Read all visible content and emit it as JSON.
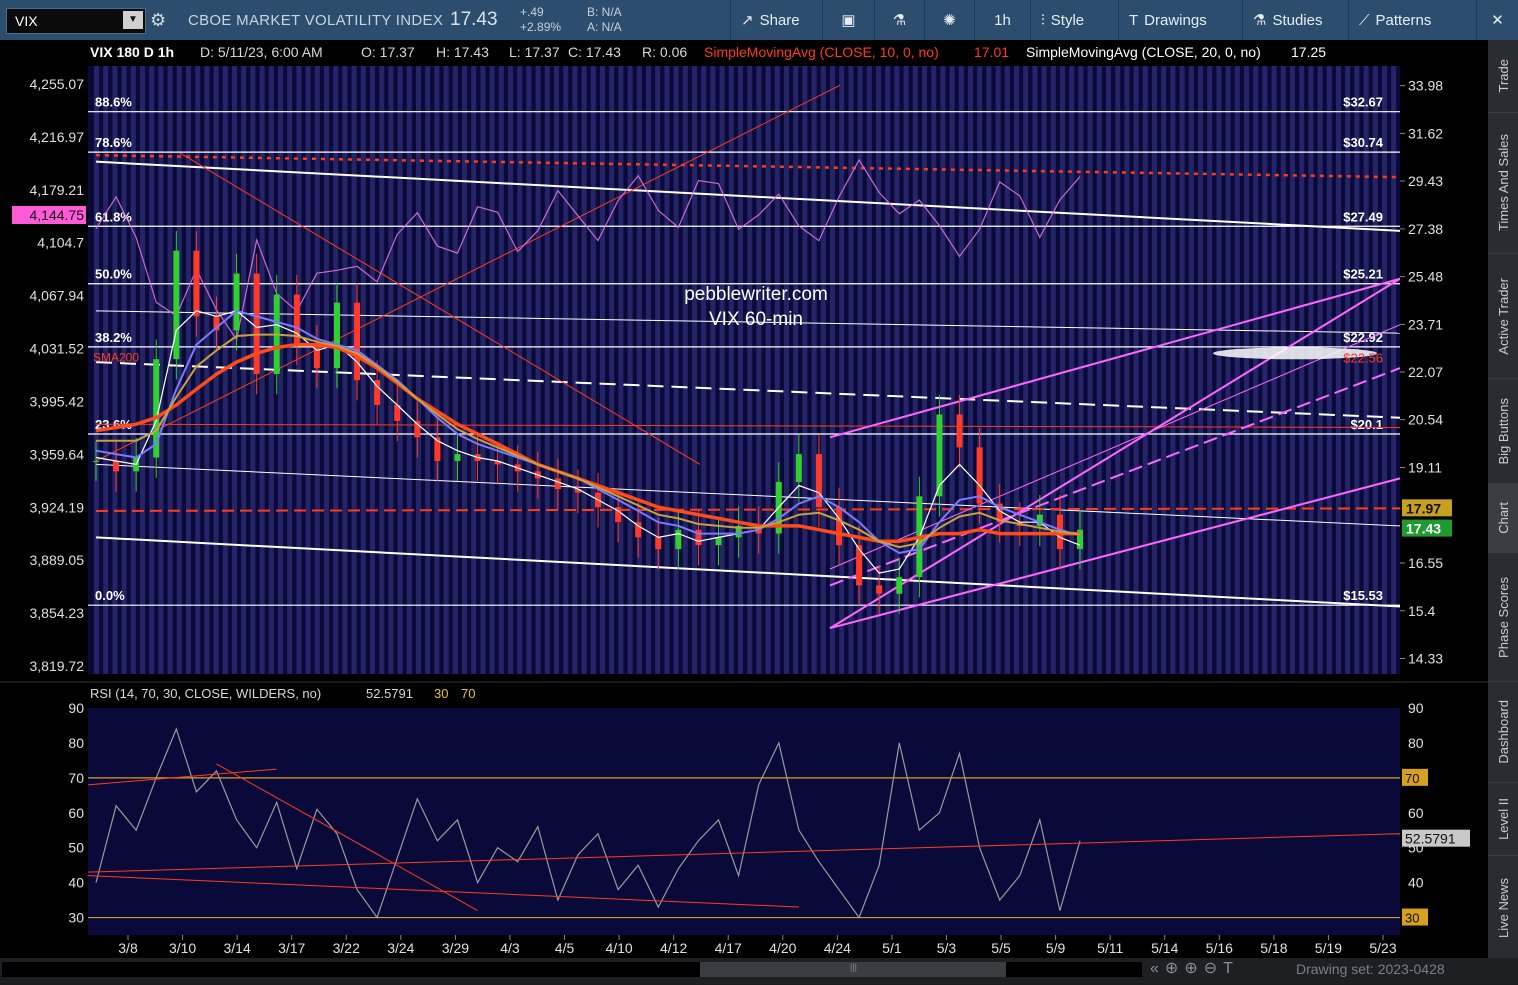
{
  "toolbar": {
    "symbol": "VIX",
    "name": "CBOE MARKET VOLATILITY INDEX",
    "last": "17.43",
    "change": "+.49",
    "change_pct": "+2.89%",
    "bid": "B: N/A",
    "ask": "A: N/A",
    "buttons": {
      "share": "Share",
      "period": "1h",
      "style": "Style",
      "drawings": "Drawings",
      "studies": "Studies",
      "patterns": "Patterns"
    }
  },
  "header": {
    "symbol_period": "VIX 180 D 1h",
    "date": "D: 5/11/23, 6:00 AM",
    "open": "O: 17.37",
    "high": "H: 17.43",
    "low": "L: 17.37",
    "close": "C: 17.43",
    "range": "R: 0.06",
    "sma10_label": "SimpleMovingAvg (CLOSE, 10, 0, no)",
    "sma10_value": "17.01",
    "sma20_label": "SimpleMovingAvg (CLOSE, 20, 0, no)",
    "sma20_value": "17.25"
  },
  "watermark": {
    "line1": "pebblewriter.com",
    "line2": "VIX 60-min"
  },
  "rsi_header": {
    "label": "RSI (14, 70, 30, CLOSE, WILDERS, no)",
    "value": "52.5791",
    "ob": "30",
    "os": "70"
  },
  "right_tabs": [
    "Trade",
    "Times And Sales",
    "Active Trader",
    "Big Buttons",
    "Chart",
    "Phase Scores",
    "Dashboard",
    "Level II",
    "Live News"
  ],
  "bottom": {
    "drawing_set": "Drawing set: 2023-0428"
  },
  "colors": {
    "background": "#000000",
    "plot_bg": "#0a0a3a",
    "stripe": "#3a3a8c",
    "sma10": "#ffffff",
    "sma20": "#7a7aff",
    "sma50": "#c8a040",
    "sma200": "#ff4a1a",
    "spx": "#e070e0",
    "fib": "#ffffff",
    "channel": "#ff66ff",
    "rsi": "#9a9a9a",
    "accent_red": "#ff3b1a"
  },
  "chart_data": [
    {
      "type": "line",
      "title": "VIX 180 D 1h",
      "x_ticks": [
        "3/8",
        "3/10",
        "3/14",
        "3/17",
        "3/22",
        "3/24",
        "3/29",
        "4/3",
        "4/5",
        "4/10",
        "4/12",
        "4/17",
        "4/20",
        "4/24",
        "5/1",
        "5/3",
        "5/5",
        "5/9",
        "5/11",
        "5/14",
        "5/16",
        "5/18",
        "5/19",
        "5/23"
      ],
      "y_right_ticks": [
        "33.98",
        "31.62",
        "29.43",
        "27.38",
        "25.48",
        "23.71",
        "22.07",
        "20.54",
        "19.11",
        "16.55",
        "15.4",
        "14.33"
      ],
      "y_right_range": [
        14.0,
        35.0
      ],
      "y_right_log": true,
      "y_left_ticks": [
        "4,255.07",
        "4,216.97",
        "4,179.21",
        "4,104.7",
        "4,067.94",
        "4,031.52",
        "3,995.42",
        "3,959.64",
        "3,924.19",
        "3,889.05",
        "3,854.23",
        "3,819.72"
      ],
      "y_left_label_highlight": "4,144.75",
      "fib_levels": [
        {
          "pct": "88.6%",
          "price": "$32.67",
          "value": 32.67
        },
        {
          "pct": "78.6%",
          "price": "$30.74",
          "value": 30.74
        },
        {
          "pct": "61.8%",
          "price": "$27.49",
          "value": 27.49
        },
        {
          "pct": "50.0%",
          "price": "$25.21",
          "value": 25.21
        },
        {
          "pct": "38.2%",
          "price": "$22.92",
          "value": 22.92
        },
        {
          "pct": "23.6%",
          "price": "$20.1",
          "value": 20.1
        },
        {
          "pct": "0.0%",
          "price": "$15.53",
          "value": 15.53
        }
      ],
      "sma200_label": "SMA200",
      "sma200_price": "$22.56",
      "price_tags": [
        {
          "label": "17.97",
          "value": 17.97
        },
        {
          "label": "17.43",
          "value": 17.43
        }
      ],
      "series": [
        {
          "name": "VIX close",
          "values": [
            19.3,
            19.0,
            19.4,
            22.5,
            26.5,
            24.0,
            23.5,
            25.6,
            22.0,
            24.8,
            23.0,
            22.2,
            24.5,
            21.8,
            21.0,
            20.5,
            20.0,
            19.3,
            19.5,
            19.3,
            19.2,
            19.0,
            18.8,
            18.5,
            18.4,
            18.0,
            17.6,
            17.2,
            16.9,
            17.4,
            17.0,
            17.2,
            17.5,
            17.3,
            18.7,
            19.5,
            18.0,
            17.0,
            16.0,
            15.8,
            16.2,
            18.3,
            20.7,
            19.7,
            18.1,
            17.6,
            17.5,
            17.8,
            16.9,
            17.4
          ]
        },
        {
          "name": "SMA 10",
          "values": [
            19.4,
            19.3,
            19.2,
            20.5,
            23.5,
            24.2,
            24.0,
            24.2,
            23.6,
            23.7,
            23.4,
            22.8,
            23.0,
            22.4,
            21.6,
            21.0,
            20.4,
            19.9,
            19.6,
            19.4,
            19.3,
            19.1,
            18.9,
            18.7,
            18.5,
            18.2,
            17.9,
            17.5,
            17.2,
            17.3,
            17.1,
            17.2,
            17.3,
            17.4,
            18.0,
            18.6,
            18.4,
            17.7,
            16.9,
            16.3,
            16.4,
            17.2,
            18.6,
            19.2,
            18.6,
            17.9,
            17.6,
            17.6,
            17.2,
            17.0
          ]
        },
        {
          "name": "SMA 20",
          "values": [
            19.6,
            19.5,
            19.4,
            19.8,
            21.5,
            23.0,
            23.6,
            24.2,
            24.0,
            23.8,
            23.6,
            23.2,
            23.0,
            22.8,
            22.3,
            21.8,
            21.2,
            20.6,
            20.1,
            19.8,
            19.6,
            19.4,
            19.2,
            19.0,
            18.8,
            18.5,
            18.2,
            17.9,
            17.6,
            17.5,
            17.3,
            17.3,
            17.3,
            17.4,
            17.7,
            18.1,
            18.3,
            18.0,
            17.6,
            17.1,
            16.8,
            16.9,
            17.6,
            18.2,
            18.3,
            18.0,
            17.8,
            17.6,
            17.4,
            17.25
          ]
        },
        {
          "name": "SMA 200",
          "values": [
            20.2,
            20.3,
            20.4,
            20.6,
            21.0,
            21.5,
            22.0,
            22.4,
            22.7,
            22.9,
            23.0,
            23.0,
            22.9,
            22.6,
            22.2,
            21.7,
            21.2,
            20.8,
            20.4,
            20.1,
            19.8,
            19.5,
            19.2,
            19.0,
            18.8,
            18.6,
            18.4,
            18.2,
            18.0,
            17.9,
            17.8,
            17.7,
            17.6,
            17.5,
            17.5,
            17.5,
            17.4,
            17.3,
            17.2,
            17.1,
            17.1,
            17.2,
            17.3,
            17.3,
            17.4,
            17.3,
            17.3,
            17.3,
            17.3,
            17.3
          ]
        }
      ]
    },
    {
      "type": "line",
      "title": "RSI (14, 70, 30, CLOSE, WILDERS, no)",
      "y_ticks": [
        "90",
        "80",
        "70",
        "60",
        "50",
        "40",
        "30"
      ],
      "ylim": [
        25,
        90
      ],
      "levels": [
        70,
        30
      ],
      "last_value": 52.5791,
      "series": [
        {
          "name": "RSI",
          "values": [
            40,
            62,
            55,
            70,
            84,
            66,
            72,
            58,
            50,
            63,
            44,
            61,
            54,
            38,
            30,
            47,
            64,
            52,
            58,
            40,
            50,
            46,
            56,
            35,
            48,
            54,
            38,
            45,
            33,
            44,
            52,
            58,
            42,
            68,
            80,
            55,
            46,
            38,
            30,
            45,
            80,
            55,
            60,
            77,
            50,
            35,
            42,
            58,
            32,
            52
          ]
        }
      ]
    }
  ]
}
